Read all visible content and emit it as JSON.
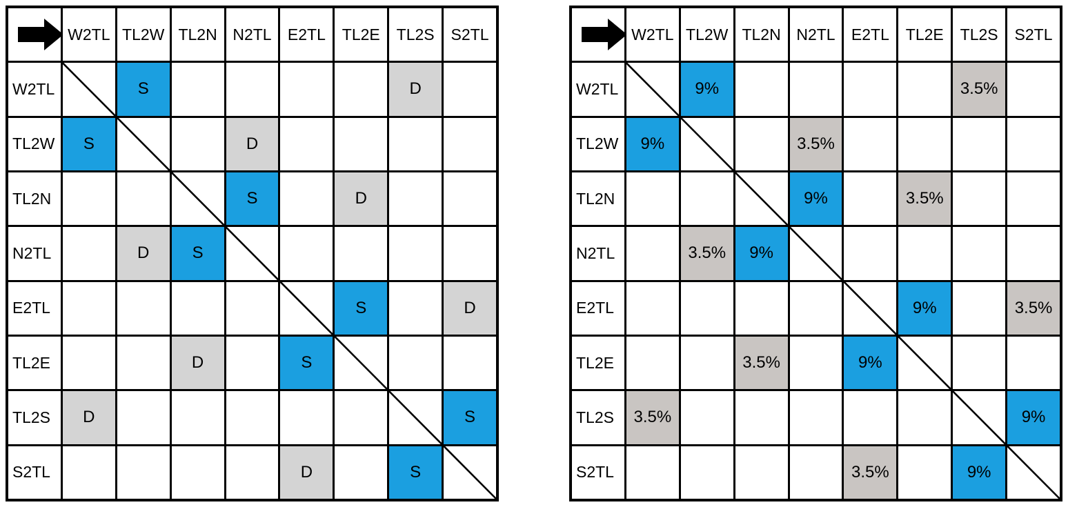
{
  "page": {
    "background": "#FFFFFF"
  },
  "corner_icon": "arrow-right-icon",
  "column_headers": [
    "W2TL",
    "TL2W",
    "TL2N",
    "N2TL",
    "E2TL",
    "TL2E",
    "TL2S",
    "S2TL"
  ],
  "row_headers": [
    "W2TL",
    "TL2W",
    "TL2N",
    "N2TL",
    "E2TL",
    "TL2E",
    "TL2S",
    "S2TL"
  ],
  "tables": [
    {
      "name": "conflict-type-matrix",
      "diagonal_line": true,
      "cell_colors": {
        "blue": "#1B9FE0",
        "gray": "#D4D4D4"
      },
      "marked_cells": [
        {
          "row": "W2TL",
          "col": "TL2W",
          "value": "S",
          "style": "blue"
        },
        {
          "row": "W2TL",
          "col": "TL2S",
          "value": "D",
          "style": "gray"
        },
        {
          "row": "TL2W",
          "col": "W2TL",
          "value": "S",
          "style": "blue"
        },
        {
          "row": "TL2W",
          "col": "N2TL",
          "value": "D",
          "style": "gray"
        },
        {
          "row": "TL2N",
          "col": "N2TL",
          "value": "S",
          "style": "blue"
        },
        {
          "row": "TL2N",
          "col": "TL2E",
          "value": "D",
          "style": "gray"
        },
        {
          "row": "N2TL",
          "col": "TL2W",
          "value": "D",
          "style": "gray"
        },
        {
          "row": "N2TL",
          "col": "TL2N",
          "value": "S",
          "style": "blue"
        },
        {
          "row": "E2TL",
          "col": "TL2E",
          "value": "S",
          "style": "blue"
        },
        {
          "row": "E2TL",
          "col": "S2TL",
          "value": "D",
          "style": "gray"
        },
        {
          "row": "TL2E",
          "col": "TL2N",
          "value": "D",
          "style": "gray"
        },
        {
          "row": "TL2E",
          "col": "E2TL",
          "value": "S",
          "style": "blue"
        },
        {
          "row": "TL2S",
          "col": "W2TL",
          "value": "D",
          "style": "gray"
        },
        {
          "row": "TL2S",
          "col": "S2TL",
          "value": "S",
          "style": "blue"
        },
        {
          "row": "S2TL",
          "col": "E2TL",
          "value": "D",
          "style": "gray"
        },
        {
          "row": "S2TL",
          "col": "TL2S",
          "value": "S",
          "style": "blue"
        }
      ]
    },
    {
      "name": "probability-matrix",
      "diagonal_line": true,
      "cell_colors": {
        "blue": "#1B9FE0",
        "gray": "#C9C5C2"
      },
      "marked_cells": [
        {
          "row": "W2TL",
          "col": "TL2W",
          "value": "9%",
          "style": "blue"
        },
        {
          "row": "W2TL",
          "col": "TL2S",
          "value": "3.5%",
          "style": "gray"
        },
        {
          "row": "TL2W",
          "col": "W2TL",
          "value": "9%",
          "style": "blue"
        },
        {
          "row": "TL2W",
          "col": "N2TL",
          "value": "3.5%",
          "style": "gray"
        },
        {
          "row": "TL2N",
          "col": "N2TL",
          "value": "9%",
          "style": "blue"
        },
        {
          "row": "TL2N",
          "col": "TL2E",
          "value": "3.5%",
          "style": "gray"
        },
        {
          "row": "N2TL",
          "col": "TL2W",
          "value": "3.5%",
          "style": "gray"
        },
        {
          "row": "N2TL",
          "col": "TL2N",
          "value": "9%",
          "style": "blue"
        },
        {
          "row": "E2TL",
          "col": "TL2E",
          "value": "9%",
          "style": "blue"
        },
        {
          "row": "E2TL",
          "col": "S2TL",
          "value": "3.5%",
          "style": "gray"
        },
        {
          "row": "TL2E",
          "col": "TL2N",
          "value": "3.5%",
          "style": "gray"
        },
        {
          "row": "TL2E",
          "col": "E2TL",
          "value": "9%",
          "style": "blue"
        },
        {
          "row": "TL2S",
          "col": "W2TL",
          "value": "3.5%",
          "style": "gray"
        },
        {
          "row": "TL2S",
          "col": "S2TL",
          "value": "9%",
          "style": "blue"
        },
        {
          "row": "S2TL",
          "col": "E2TL",
          "value": "3.5%",
          "style": "gray"
        },
        {
          "row": "S2TL",
          "col": "TL2S",
          "value": "9%",
          "style": "blue"
        }
      ]
    }
  ]
}
